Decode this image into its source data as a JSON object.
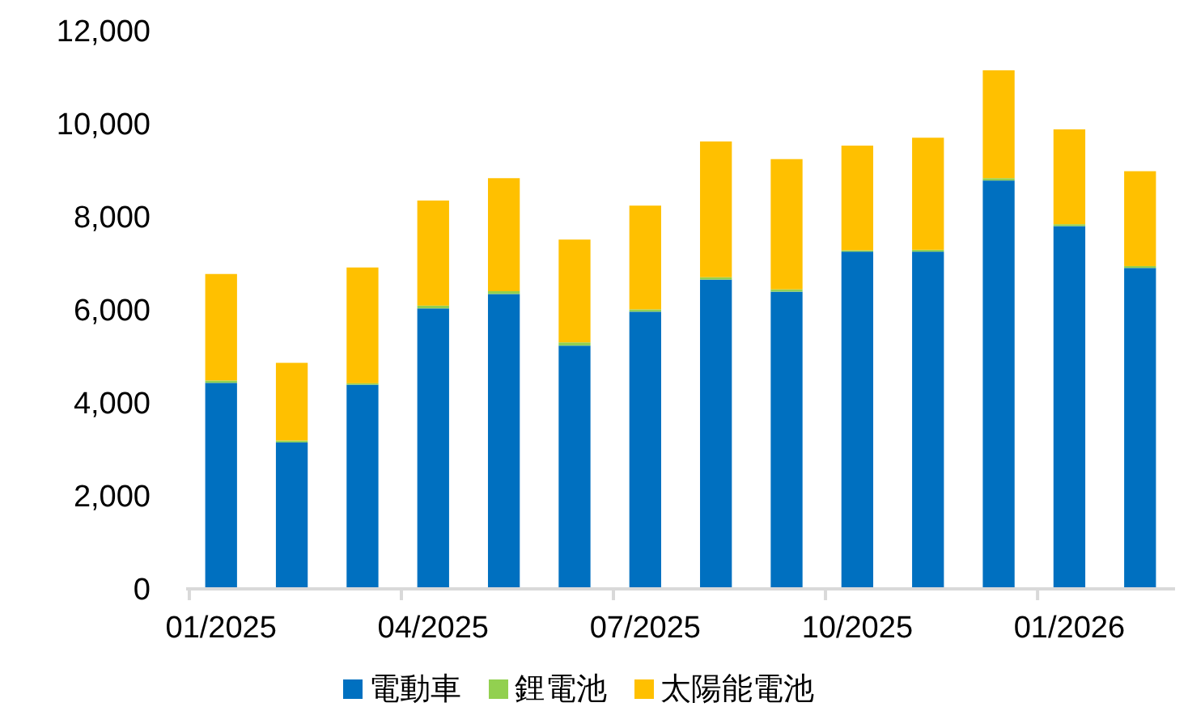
{
  "chart_data": {
    "type": "bar",
    "stacked": true,
    "categories": [
      "01/2025",
      null,
      null,
      "04/2025",
      null,
      null,
      "07/2025",
      null,
      null,
      "10/2025",
      null,
      null,
      "01/2026",
      null
    ],
    "series": [
      {
        "name": "電動車",
        "color": "#0070c0",
        "values": [
          4430,
          3150,
          4390,
          6030,
          6340,
          5230,
          5960,
          6650,
          6390,
          7250,
          7250,
          8780,
          7800,
          6900
        ]
      },
      {
        "name": "鋰電池",
        "color": "#92d050",
        "values": [
          50,
          40,
          30,
          60,
          60,
          70,
          50,
          50,
          50,
          30,
          40,
          50,
          40,
          40
        ]
      },
      {
        "name": "太陽能電池",
        "color": "#ffc000",
        "values": [
          2290,
          1670,
          2490,
          2260,
          2430,
          2210,
          2230,
          2920,
          2800,
          2250,
          2410,
          2320,
          2040,
          2040
        ]
      }
    ],
    "ylim": [
      0,
      12000
    ],
    "yticks": [
      {
        "value": 0,
        "label": "0"
      },
      {
        "value": 2000,
        "label": "2,000"
      },
      {
        "value": 4000,
        "label": "4,000"
      },
      {
        "value": 6000,
        "label": "6,000"
      },
      {
        "value": 8000,
        "label": "8,000"
      },
      {
        "value": 10000,
        "label": "10,000"
      },
      {
        "value": 12000,
        "label": "12,000"
      }
    ],
    "grid": false,
    "legend": "bottom"
  }
}
